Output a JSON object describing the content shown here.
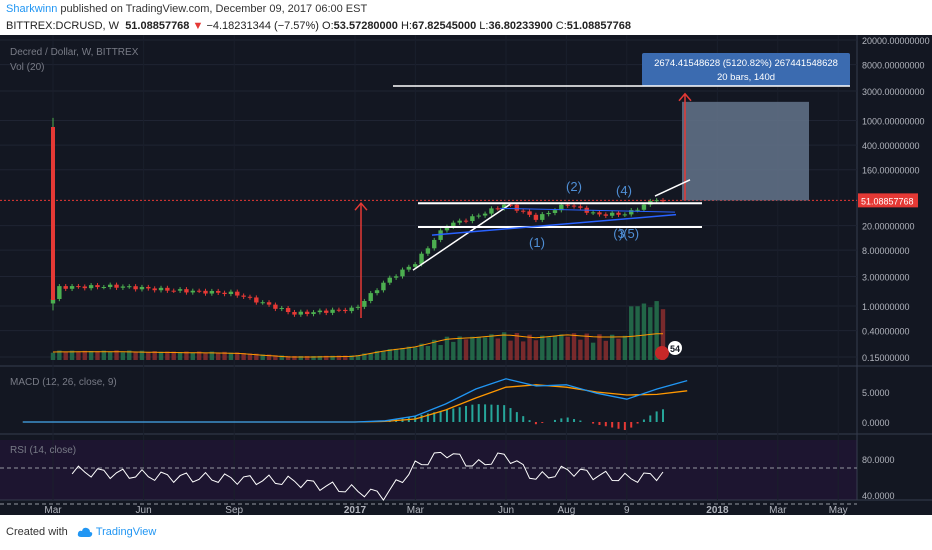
{
  "header": {
    "author": "Sharkwinn",
    "published": "published on TradingView.com, December 09, 2017 06:00 EST",
    "symbol": "BITTREX:DCRUSD, W",
    "last": "51.08857768",
    "change": "−4.18231344 (−7.57%)",
    "o_label": "O:",
    "o_value": "53.57280000",
    "h_label": "H:",
    "h_value": "67.82545000",
    "l_label": "L:",
    "l_value": "36.80233900",
    "c_label": "C:",
    "c_value": "51.08857768"
  },
  "footer": {
    "created_with": "Created with",
    "brand": "TradingView"
  },
  "colors": {
    "background": "#131722",
    "up": "#4caf50",
    "down": "#e53935",
    "macd": "#2196f3",
    "signal": "#ff9800",
    "rsi": "#ffffff",
    "measure_box": "#64748b",
    "measure_label": "#3b6bb0",
    "price_tag": "#e53935"
  },
  "chart_data": {
    "type": "candlestick",
    "title": "Decred / Dollar, W, BITTREX",
    "volume_label": "Vol (20)",
    "x_ticks": [
      "Mar",
      "Jun",
      "Sep",
      "2017",
      "Mar",
      "Jun",
      "Aug",
      "9",
      "2018",
      "Mar",
      "May"
    ],
    "price_scale": "log",
    "price_ticks": [
      "20000.00000000",
      "8000.00000000",
      "3000.00000000",
      "1000.00000000",
      "400.00000000",
      "160.00000000",
      "51.08857768",
      "20.00000000",
      "8.00000000",
      "3.00000000",
      "1.00000000",
      "0.40000000",
      "0.15000000"
    ],
    "last_price": "51.08857768",
    "measure_label": {
      "line1": "2674.41548628 (5120.82%) 267441548628",
      "line2": "20 bars, 140d"
    },
    "wave_labels": [
      "(1)",
      "(2)",
      "(3)",
      "(4)",
      "(5)"
    ],
    "wave_labels_visual": [
      "(1)",
      "(2)",
      "(3",
      "(4)",
      ")(5)"
    ],
    "badge": "54",
    "price_series_approx": [
      {
        "period": "2016-02",
        "close": 1.3
      },
      {
        "period": "2016-03",
        "close": 2.0
      },
      {
        "period": "2016-05",
        "close": 2.1
      },
      {
        "period": "2016-07",
        "close": 1.8
      },
      {
        "period": "2016-09",
        "close": 1.6
      },
      {
        "period": "2016-11",
        "close": 0.75
      },
      {
        "period": "2017-01",
        "close": 0.9
      },
      {
        "period": "2017-02",
        "close": 2.5
      },
      {
        "period": "2017-03",
        "close": 5.0
      },
      {
        "period": "2017-04",
        "close": 20.0
      },
      {
        "period": "2017-05",
        "close": 28.0
      },
      {
        "period": "2017-06",
        "close": 45.0
      },
      {
        "period": "2017-07",
        "close": 26.0
      },
      {
        "period": "2017-08",
        "close": 45.0
      },
      {
        "period": "2017-09",
        "close": 30.0
      },
      {
        "period": "2017-10",
        "close": 31.0
      },
      {
        "period": "2017-11",
        "close": 55.0
      },
      {
        "period": "2017-12",
        "close": 51.09
      }
    ],
    "macd": {
      "label": "MACD (12, 26, close, 9)",
      "ticks": [
        "5.0000",
        "0.0000"
      ],
      "macd_approx": [
        0.0,
        0.0,
        0.0,
        0.0,
        0.0,
        0.0,
        0.0,
        0.2,
        1.0,
        3.0,
        5.5,
        7.2,
        6.0,
        6.2,
        4.8,
        3.8,
        5.5,
        6.9
      ],
      "signal_approx": [
        0.0,
        0.0,
        0.0,
        0.0,
        0.0,
        0.0,
        0.0,
        0.1,
        0.5,
        2.0,
        4.0,
        5.8,
        6.2,
        5.8,
        5.0,
        4.5,
        4.6,
        5.2
      ]
    },
    "rsi": {
      "label": "RSI (14, close)",
      "ticks": [
        "80.0000",
        "40.0000"
      ],
      "values_approx": [
        65,
        68,
        64,
        60,
        58,
        55,
        45,
        40,
        72,
        88,
        72,
        85,
        58,
        68,
        62,
        58,
        62,
        74
      ]
    }
  }
}
